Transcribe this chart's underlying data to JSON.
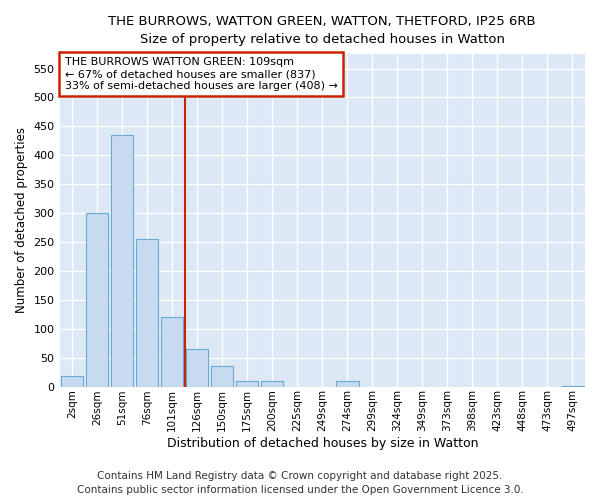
{
  "title_line1": "THE BURROWS, WATTON GREEN, WATTON, THETFORD, IP25 6RB",
  "title_line2": "Size of property relative to detached houses in Watton",
  "xlabel": "Distribution of detached houses by size in Watton",
  "ylabel": "Number of detached properties",
  "bar_color": "#c8daf0",
  "bar_edge_color": "#6aaad4",
  "background_color": "#dce8f5",
  "grid_color": "#ffffff",
  "fig_color": "#ffffff",
  "categories": [
    "2sqm",
    "26sqm",
    "51sqm",
    "76sqm",
    "101sqm",
    "126sqm",
    "150sqm",
    "175sqm",
    "200sqm",
    "225sqm",
    "249sqm",
    "274sqm",
    "299sqm",
    "324sqm",
    "349sqm",
    "373sqm",
    "398sqm",
    "423sqm",
    "448sqm",
    "473sqm",
    "497sqm"
  ],
  "values": [
    18,
    300,
    435,
    255,
    120,
    65,
    35,
    10,
    10,
    0,
    0,
    10,
    0,
    0,
    0,
    0,
    0,
    0,
    0,
    0,
    1
  ],
  "ylim": [
    0,
    575
  ],
  "yticks": [
    0,
    50,
    100,
    150,
    200,
    250,
    300,
    350,
    400,
    450,
    500,
    550
  ],
  "vline_color": "#cc2200",
  "vline_x": 4.5,
  "annotation_text": "THE BURROWS WATTON GREEN: 109sqm\n← 67% of detached houses are smaller (837)\n33% of semi-detached houses are larger (408) →",
  "annotation_box_color": "#ffffff",
  "annotation_box_edge": "#cc2200",
  "footer_line1": "Contains HM Land Registry data © Crown copyright and database right 2025.",
  "footer_line2": "Contains public sector information licensed under the Open Government Licence 3.0.",
  "footer_fontsize": 7.5
}
